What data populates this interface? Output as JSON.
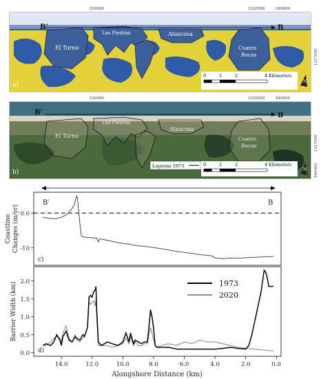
{
  "panel_a": {
    "tag": "a)",
    "coord_top_1": "530000",
    "coord_top_2": "1220500",
    "coord_top_3": "540000",
    "coord_side": "1217000",
    "marker_b_prime": "B'",
    "marker_b": "B",
    "lagoons": [
      "El Torno",
      "Las Piedras",
      "Atascosa",
      "Cuatro Bocas"
    ],
    "scale_ticks": [
      "0",
      "1",
      "2",
      "4"
    ],
    "scale_unit": "Kilometers",
    "north": "N",
    "colors": {
      "water": "#2f5aa8",
      "land": "#e4d23a",
      "lagoon": "#3d5f9a"
    }
  },
  "panel_b": {
    "tag": "b)",
    "coord_top_1": "530000",
    "coord_top_2": "1220500",
    "coord_top_3": "540000",
    "coord_side": "1217000",
    "coord_side_2": "540000",
    "marker_b_prime": "B'",
    "marker_b": "B",
    "lagoons": [
      "El Torno",
      "Las Piedras",
      "Atascosa",
      "Cuatro Bocas"
    ],
    "legend": "Lagoons 1973",
    "scale_ticks": [
      "0",
      "1",
      "2",
      "4"
    ],
    "scale_unit": "Kilometers",
    "north": "N",
    "colors": {
      "sea": "#3f6f83",
      "land": "#4b6a3c",
      "beach": "#d8d4c2"
    }
  },
  "panel_c": {
    "tag": "c)",
    "end_left": "B′",
    "end_right": "B",
    "ylabel_line1": "Coastline",
    "ylabel_line2": "Changes (m/yr)",
    "y_ticks": [
      "0.0",
      "-10"
    ]
  },
  "panel_d": {
    "tag": "d)",
    "ylabel": "Barrier Width (km)",
    "xlabel": "Alongshore Distance (km)"
  },
  "chart_data": [
    {
      "type": "line",
      "title": "",
      "xlabel": "",
      "ylabel": "Coastline Changes (m/yr)",
      "xlim": [
        15.8,
        -0.3
      ],
      "ylim": [
        -15,
        6
      ],
      "y_ticks": [
        0,
        -10
      ],
      "reference_line": 0,
      "series": [
        {
          "name": "",
          "x": [
            15.2,
            14.8,
            14.4,
            14.0,
            13.6,
            13.4,
            13.2,
            13.1,
            13.0,
            12.95,
            12.9,
            12.8,
            12.7,
            12.6,
            12.3,
            12.0,
            11.7,
            11.6,
            11.5,
            11.4,
            11.0,
            10.5,
            10.0,
            9.5,
            9.2,
            9.0,
            8.5,
            8.0,
            7.5,
            7.0,
            6.5,
            6.0,
            5.5,
            5.0,
            4.5,
            4.2,
            4.0,
            3.5,
            3.0,
            2.5,
            2.0,
            1.5,
            1.0,
            0.5,
            0.2
          ],
          "y": [
            -1.2,
            -1.5,
            -1.6,
            -1.2,
            -0.3,
            0.8,
            2.0,
            3.5,
            5.0,
            4.0,
            1.8,
            -3.0,
            -6.5,
            -6.8,
            -7.0,
            -7.1,
            -7.2,
            -8.3,
            -7.4,
            -7.5,
            -7.8,
            -8.3,
            -8.7,
            -9.0,
            -9.3,
            -9.4,
            -9.6,
            -9.9,
            -10.2,
            -10.6,
            -11.0,
            -11.3,
            -11.6,
            -11.9,
            -12.1,
            -12.3,
            -12.9,
            -13.1,
            -12.9,
            -13.0,
            -12.8,
            -12.7,
            -12.6,
            -12.5,
            -12.4
          ]
        }
      ]
    },
    {
      "type": "line",
      "title": "",
      "xlabel": "Alongshore Distance (km)",
      "ylabel": "Barrier Width (km)",
      "xlim": [
        15.8,
        -0.3
      ],
      "ylim": [
        -0.1,
        2.4
      ],
      "x_ticks": [
        14.0,
        12.0,
        10.0,
        8.0,
        6.0,
        4.0,
        2.0,
        0.0
      ],
      "y_ticks": [
        0.0,
        0.5,
        1.0,
        1.5,
        2.0
      ],
      "legend": "upper-center",
      "series": [
        {
          "name": "1973",
          "color": "#000000",
          "x": [
            15.2,
            15.0,
            14.7,
            14.5,
            14.3,
            14.1,
            14.0,
            13.9,
            13.7,
            13.5,
            13.3,
            13.1,
            13.0,
            12.8,
            12.6,
            12.5,
            12.3,
            12.2,
            12.1,
            12.0,
            11.9,
            11.8,
            11.75,
            11.7,
            11.6,
            11.4,
            11.2,
            11.0,
            10.7,
            10.3,
            10.0,
            9.8,
            9.6,
            9.5,
            9.3,
            9.2,
            9.0,
            8.8,
            8.6,
            8.4,
            8.3,
            8.2,
            8.1,
            8.0,
            7.9,
            7.8,
            7.5,
            7.0,
            6.5,
            6.0,
            5.5,
            5.0,
            4.5,
            4.0,
            3.5,
            3.0,
            2.5,
            2.0,
            1.8,
            1.6,
            1.4,
            1.2,
            1.0,
            0.9,
            0.8,
            0.7,
            0.6,
            0.5,
            0.3,
            0.2
          ],
          "y": [
            0.2,
            0.25,
            0.2,
            0.3,
            0.5,
            0.35,
            0.2,
            0.45,
            0.6,
            0.35,
            0.3,
            0.45,
            0.4,
            0.35,
            0.5,
            0.45,
            0.7,
            1.55,
            1.6,
            1.55,
            1.7,
            1.75,
            1.85,
            1.2,
            0.3,
            0.2,
            0.25,
            0.3,
            0.25,
            0.2,
            0.3,
            0.55,
            0.3,
            0.55,
            0.25,
            0.35,
            0.3,
            0.25,
            0.3,
            0.3,
            0.7,
            1.2,
            1.0,
            0.7,
            0.2,
            0.15,
            0.15,
            0.15,
            0.1,
            0.1,
            0.1,
            0.1,
            0.1,
            0.1,
            0.12,
            0.15,
            0.12,
            0.1,
            0.2,
            0.5,
            0.9,
            1.3,
            1.7,
            2.0,
            2.3,
            2.25,
            2.1,
            1.85,
            1.85,
            1.85
          ]
        },
        {
          "name": "2020",
          "color": "#8c8c8c",
          "x": [
            15.2,
            15.0,
            14.7,
            14.5,
            14.3,
            14.1,
            14.0,
            13.9,
            13.7,
            13.5,
            13.3,
            13.1,
            13.0,
            12.8,
            12.6,
            12.5,
            12.3,
            12.2,
            12.1,
            12.0,
            11.9,
            11.8,
            11.75,
            11.7,
            11.6,
            11.4,
            11.2,
            11.0,
            10.7,
            10.3,
            10.0,
            9.8,
            9.6,
            9.5,
            9.3,
            9.2,
            9.0,
            8.8,
            8.6,
            8.4,
            8.3,
            8.2,
            8.1,
            8.0,
            7.9,
            7.8,
            7.5,
            7.0,
            6.5,
            6.0,
            5.5,
            5.0,
            4.5,
            4.0,
            3.5,
            3.0,
            2.5,
            2.0,
            1.5,
            1.0,
            0.5,
            0.2
          ],
          "y": [
            0.2,
            0.2,
            0.3,
            0.4,
            0.45,
            0.4,
            0.3,
            0.55,
            0.75,
            0.4,
            0.3,
            0.5,
            0.35,
            0.3,
            0.4,
            0.45,
            0.7,
            1.4,
            1.35,
            1.4,
            1.45,
            1.3,
            1.5,
            1.0,
            0.2,
            0.2,
            0.2,
            0.2,
            0.15,
            0.2,
            0.25,
            0.4,
            0.25,
            0.45,
            0.2,
            0.3,
            0.2,
            0.2,
            0.25,
            0.25,
            0.5,
            0.7,
            0.55,
            0.35,
            0.2,
            0.15,
            0.2,
            0.25,
            0.2,
            0.3,
            0.25,
            0.35,
            0.3,
            0.3,
            0.25,
            0.2,
            0.15,
            0.12,
            0.1,
            0.08,
            0.06,
            0.05
          ]
        }
      ]
    }
  ]
}
